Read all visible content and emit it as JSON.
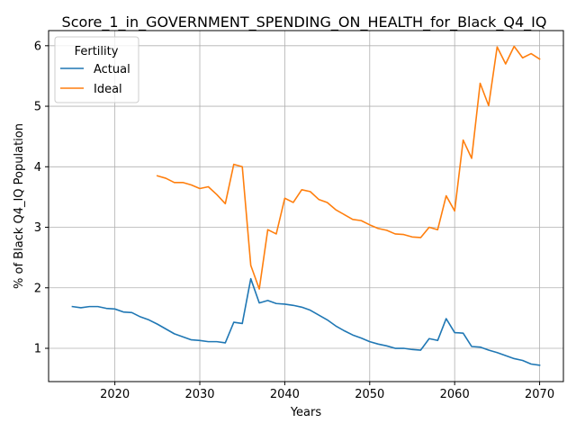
{
  "chart_data": {
    "type": "line",
    "title": "Score_1_in_GOVERNMENT_SPENDING_ON_HEALTH_for_Black_Q4_IQ",
    "xlabel": "Years",
    "ylabel": "% of Black Q4_IQ Population",
    "xlim": [
      2012.2,
      2072.8
    ],
    "ylim": [
      0.45,
      6.25
    ],
    "xticks": [
      2020,
      2030,
      2040,
      2050,
      2060,
      2070
    ],
    "yticks": [
      1,
      2,
      3,
      4,
      5,
      6
    ],
    "grid": true,
    "legend": {
      "title": "Fertility",
      "placement": "top-left"
    },
    "series": [
      {
        "name": "Actual",
        "color": "#1f77b4",
        "x": [
          2015,
          2016,
          2017,
          2018,
          2019,
          2020,
          2021,
          2022,
          2023,
          2024,
          2025,
          2026,
          2027,
          2028,
          2029,
          2030,
          2031,
          2032,
          2033,
          2034,
          2035,
          2036,
          2037,
          2038,
          2039,
          2040,
          2041,
          2042,
          2043,
          2044,
          2045,
          2046,
          2047,
          2048,
          2049,
          2050,
          2051,
          2052,
          2053,
          2054,
          2055,
          2056,
          2057,
          2058,
          2059,
          2060,
          2061,
          2062,
          2063,
          2064,
          2065,
          2066,
          2067,
          2068,
          2069,
          2070
        ],
        "values": [
          1.69,
          1.67,
          1.69,
          1.69,
          1.66,
          1.65,
          1.6,
          1.59,
          1.52,
          1.47,
          1.4,
          1.32,
          1.24,
          1.19,
          1.14,
          1.13,
          1.11,
          1.11,
          1.09,
          1.43,
          1.41,
          2.15,
          1.75,
          1.79,
          1.74,
          1.73,
          1.71,
          1.68,
          1.63,
          1.55,
          1.47,
          1.37,
          1.29,
          1.22,
          1.17,
          1.11,
          1.07,
          1.04,
          1.0,
          1.0,
          0.98,
          0.97,
          1.16,
          1.13,
          1.49,
          1.26,
          1.25,
          1.03,
          1.02,
          0.97,
          0.93,
          0.88,
          0.83,
          0.8,
          0.74,
          0.72
        ]
      },
      {
        "name": "Ideal",
        "color": "#ff7f0e",
        "x": [
          2025,
          2026,
          2027,
          2028,
          2029,
          2030,
          2031,
          2032,
          2033,
          2034,
          2035,
          2036,
          2037,
          2038,
          2039,
          2040,
          2041,
          2042,
          2043,
          2044,
          2045,
          2046,
          2047,
          2048,
          2049,
          2050,
          2051,
          2052,
          2053,
          2054,
          2055,
          2056,
          2057,
          2058,
          2059,
          2060,
          2061,
          2062,
          2063,
          2064,
          2065,
          2066,
          2067,
          2068,
          2069,
          2070
        ],
        "values": [
          3.85,
          3.81,
          3.74,
          3.74,
          3.7,
          3.64,
          3.67,
          3.54,
          3.39,
          4.04,
          4.0,
          2.37,
          1.98,
          2.96,
          2.89,
          3.48,
          3.41,
          3.62,
          3.59,
          3.46,
          3.41,
          3.29,
          3.21,
          3.13,
          3.11,
          3.04,
          2.98,
          2.95,
          2.89,
          2.88,
          2.84,
          2.83,
          3.0,
          2.96,
          3.52,
          3.27,
          4.44,
          4.14,
          5.38,
          5.01,
          5.98,
          5.7,
          5.99,
          5.8,
          5.87,
          5.78
        ]
      }
    ]
  }
}
